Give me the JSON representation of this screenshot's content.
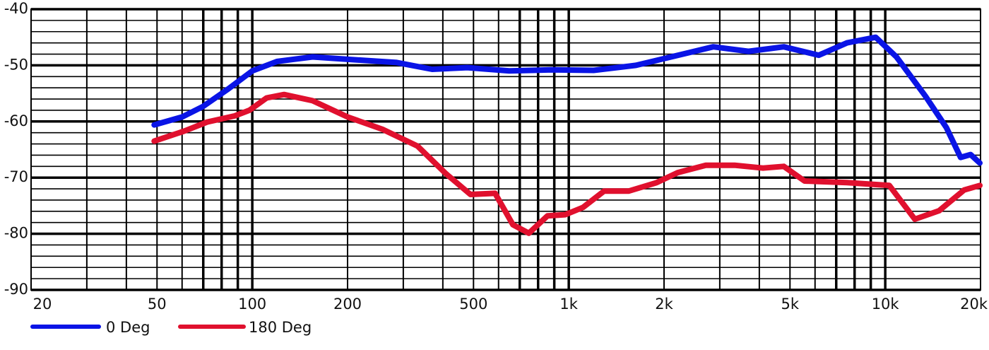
{
  "chart_data": {
    "type": "line",
    "xscale": "log",
    "xlim": [
      20,
      20000
    ],
    "xticks": [
      {
        "value": 20,
        "label": "20"
      },
      {
        "value": 50,
        "label": "50"
      },
      {
        "value": 100,
        "label": "100"
      },
      {
        "value": 200,
        "label": "200"
      },
      {
        "value": 500,
        "label": "500"
      },
      {
        "value": 1000,
        "label": "1k"
      },
      {
        "value": 2000,
        "label": "2k"
      },
      {
        "value": 5000,
        "label": "5k"
      },
      {
        "value": 10000,
        "label": "10k"
      },
      {
        "value": 20000,
        "label": "20k"
      }
    ],
    "xminor": [
      30,
      40,
      60,
      70,
      80,
      90,
      300,
      400,
      600,
      700,
      800,
      900,
      3000,
      4000,
      6000,
      7000,
      8000,
      9000
    ],
    "ylim": [
      -90,
      -40
    ],
    "yticks": [
      -90,
      -80,
      -70,
      -60,
      -50,
      -40
    ],
    "yminor": [
      -88,
      -86,
      -84,
      -82,
      -78,
      -76,
      -74,
      -72,
      -68,
      -66,
      -64,
      -62,
      -58,
      -56,
      -54,
      -52,
      -48,
      -46,
      -44,
      -42
    ],
    "grid": true,
    "series": [
      {
        "name": "0 Deg",
        "color": "#0a14e6",
        "x": [
          49,
          60,
          70,
          84,
          100,
          120,
          155,
          210,
          286,
          370,
          478,
          649,
          881,
          1199,
          1630,
          2105,
          2862,
          3697,
          4780,
          6166,
          7576,
          9326,
          10850,
          13400,
          15600,
          17300,
          18600,
          19900
        ],
        "values": [
          -60.6,
          -59.2,
          -57.3,
          -54.2,
          -51,
          -49.3,
          -48.5,
          -49,
          -49.5,
          -50.7,
          -50.4,
          -51,
          -50.8,
          -50.9,
          -50,
          -48.5,
          -46.7,
          -47.5,
          -46.7,
          -48.2,
          -46,
          -45,
          -48.5,
          -55.5,
          -61.1,
          -66.4,
          -65.9,
          -67.4
        ]
      },
      {
        "name": "180 Deg",
        "color": "#e0102e",
        "x": [
          49,
          61,
          72,
          88,
          98,
          111,
          126,
          155,
          200,
          258,
          333,
          409,
          489,
          585,
          666,
          748,
          857,
          975,
          1109,
          1292,
          1544,
          1895,
          2210,
          2710,
          3340,
          4110,
          4780,
          5560,
          7576,
          10300,
          12400,
          14800,
          17750,
          19900
        ],
        "values": [
          -63.5,
          -61.7,
          -60.1,
          -59,
          -58,
          -55.8,
          -55.2,
          -56.3,
          -59.2,
          -61.4,
          -64.4,
          -69.3,
          -73,
          -72.8,
          -78.4,
          -79.9,
          -76.8,
          -76.6,
          -75.3,
          -72.4,
          -72.4,
          -70.9,
          -69.1,
          -67.8,
          -67.8,
          -68.3,
          -68,
          -70.6,
          -70.9,
          -71.4,
          -77.4,
          -75.9,
          -72.2,
          -71.4
        ]
      }
    ]
  }
}
